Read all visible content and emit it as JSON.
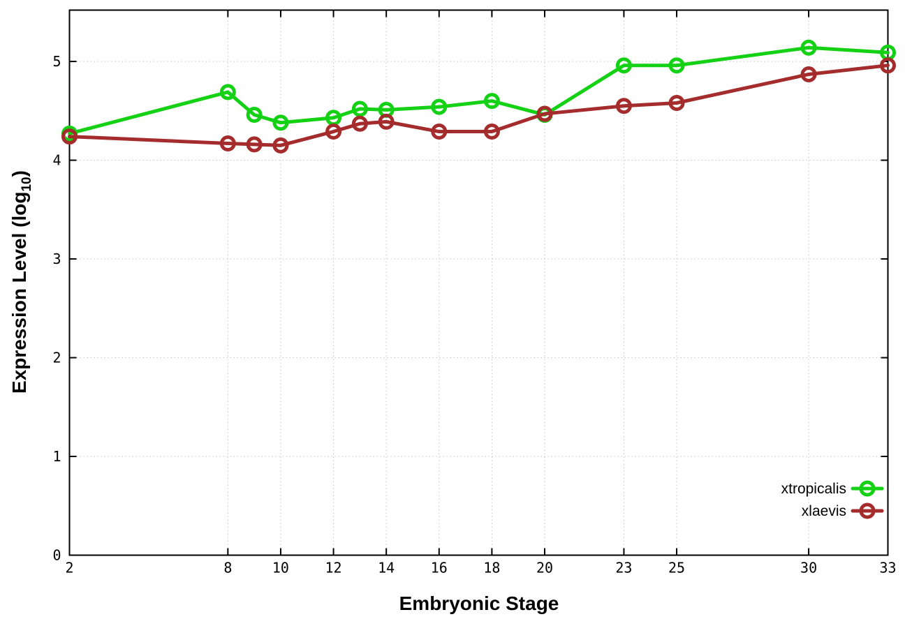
{
  "figure": {
    "background": "#ffffff"
  },
  "chart_data": {
    "type": "line",
    "title": "",
    "xlabel": "Embryonic Stage",
    "ylabel": "Expression Level (log10)",
    "ylabel_parts": {
      "main": "Expression Level (log",
      "sub": "10",
      "close": ")"
    },
    "x": [
      2,
      8,
      9,
      10,
      12,
      13,
      14,
      16,
      18,
      20,
      23,
      25,
      30,
      33
    ],
    "series": [
      {
        "name": "xtropicalis",
        "color": "#15d115",
        "values": [
          4.27,
          4.69,
          4.46,
          4.38,
          4.43,
          4.52,
          4.51,
          4.54,
          4.6,
          4.46,
          4.96,
          4.96,
          5.14,
          5.09
        ]
      },
      {
        "name": "xlaevis",
        "color": "#a52c2c",
        "values": [
          4.24,
          4.17,
          4.16,
          4.15,
          4.29,
          4.37,
          4.39,
          4.29,
          4.29,
          4.47,
          4.55,
          4.58,
          4.87,
          4.96
        ]
      }
    ],
    "xticks": [
      2,
      8,
      10,
      12,
      14,
      16,
      18,
      20,
      23,
      25,
      30,
      33
    ],
    "yticks": [
      0,
      1,
      2,
      3,
      4,
      5
    ],
    "xlim": [
      2,
      33
    ],
    "ylim": [
      0,
      5.52
    ],
    "grid": true,
    "legend_position": "inside-bottom-right",
    "axis_color": "#000000",
    "grid_color": "#c4c4c4",
    "tick_label_color": "#000000"
  }
}
